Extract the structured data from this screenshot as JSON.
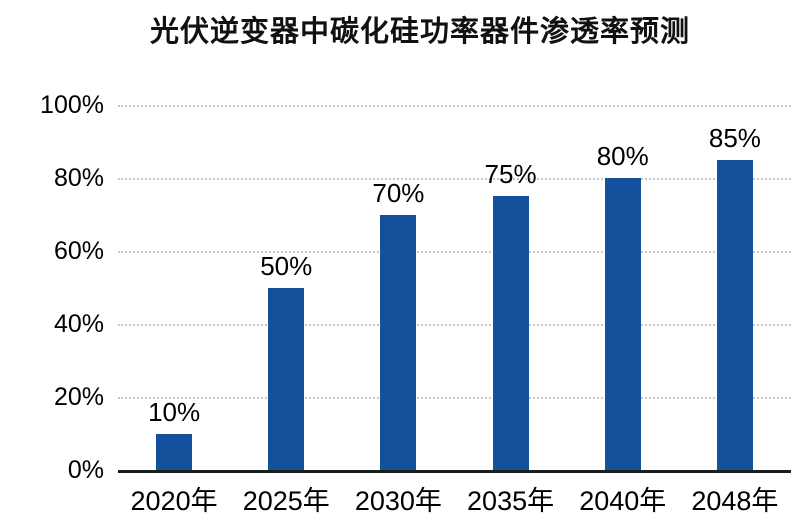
{
  "title": "光伏逆变器中碳化硅功率器件渗透率预测",
  "colors": {
    "bar": "#14519c",
    "gridline": "#c7c7c7",
    "axis_line": "#1c1c1c",
    "text": "#000000",
    "background": "#ffffff"
  },
  "chart_data": {
    "type": "bar",
    "title": "光伏逆变器中碳化硅功率器件渗透率预测",
    "categories": [
      "2020年",
      "2025年",
      "2030年",
      "2035年",
      "2040年",
      "2048年"
    ],
    "values": [
      10,
      50,
      70,
      75,
      80,
      85
    ],
    "data_labels": [
      "10%",
      "50%",
      "70%",
      "75%",
      "80%",
      "85%"
    ],
    "y_tick_labels": [
      "0%",
      "20%",
      "40%",
      "60%",
      "80%",
      "100%"
    ],
    "y_tick_values": [
      0,
      20,
      40,
      60,
      80,
      100
    ],
    "ylim": [
      0,
      100
    ],
    "xlabel": "",
    "ylabel": "",
    "grid": "horizontal-dotted",
    "legend": "none"
  }
}
